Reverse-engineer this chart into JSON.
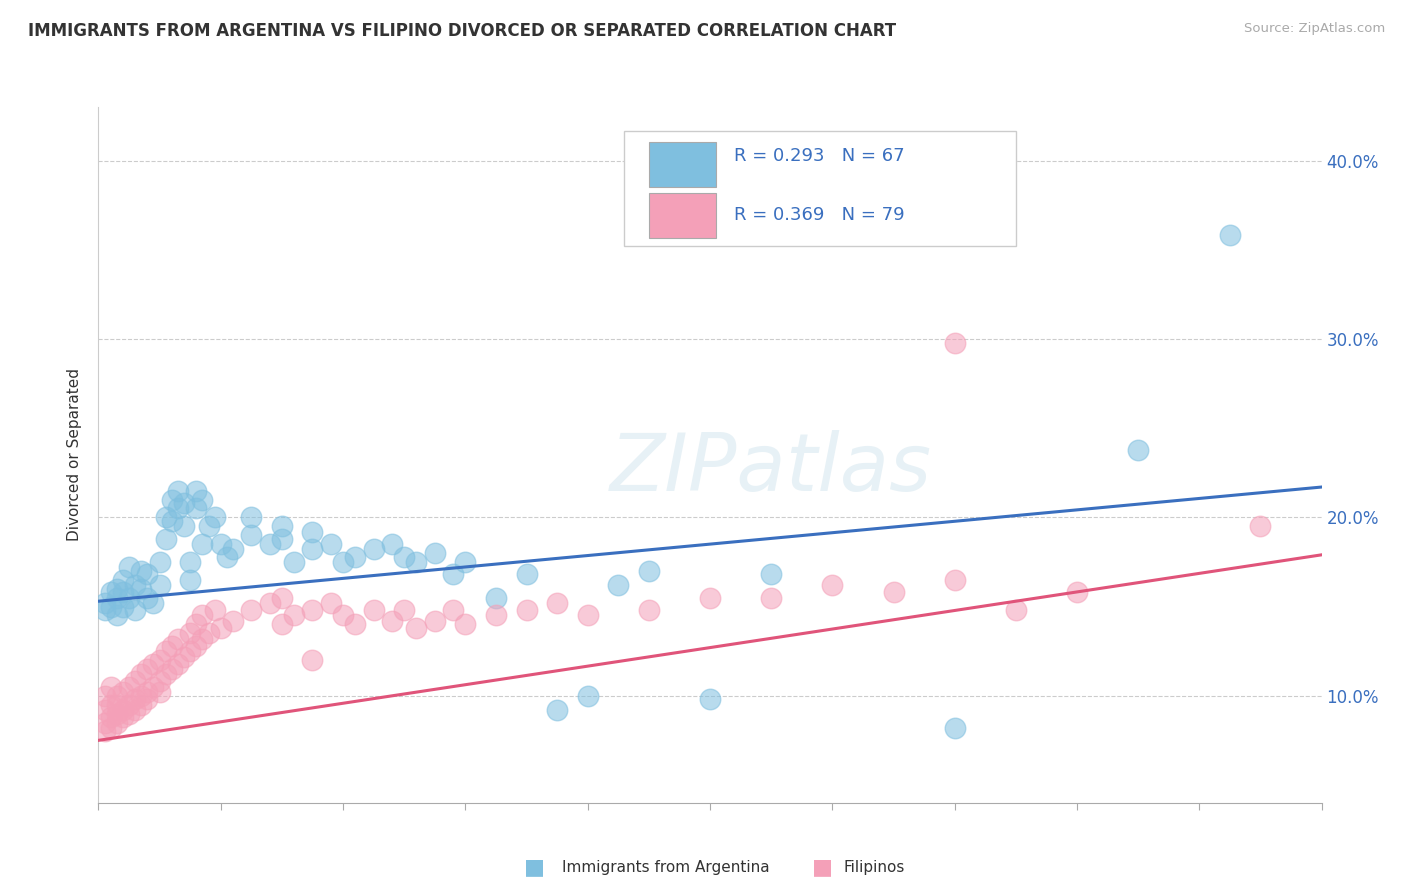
{
  "title": "IMMIGRANTS FROM ARGENTINA VS FILIPINO DIVORCED OR SEPARATED CORRELATION CHART",
  "source": "Source: ZipAtlas.com",
  "ylabel": "Divorced or Separated",
  "yticks": [
    0.1,
    0.2,
    0.3,
    0.4
  ],
  "ytick_labels": [
    "10.0%",
    "20.0%",
    "30.0%",
    "40.0%"
  ],
  "xrange": [
    0.0,
    0.2
  ],
  "yrange": [
    0.04,
    0.43
  ],
  "blue_color": "#7fbfdf",
  "pink_color": "#f4a0b8",
  "blue_line_color": "#3a6fbf",
  "pink_line_color": "#e0547a",
  "blue_intercept": 0.153,
  "blue_slope": 0.32,
  "pink_intercept": 0.075,
  "pink_slope": 0.52,
  "blue_scatter": [
    [
      0.001,
      0.152
    ],
    [
      0.001,
      0.148
    ],
    [
      0.002,
      0.15
    ],
    [
      0.002,
      0.158
    ],
    [
      0.003,
      0.145
    ],
    [
      0.003,
      0.16
    ],
    [
      0.003,
      0.155
    ],
    [
      0.004,
      0.15
    ],
    [
      0.004,
      0.165
    ],
    [
      0.004,
      0.158
    ],
    [
      0.005,
      0.155
    ],
    [
      0.005,
      0.172
    ],
    [
      0.006,
      0.162
    ],
    [
      0.006,
      0.148
    ],
    [
      0.007,
      0.16
    ],
    [
      0.007,
      0.17
    ],
    [
      0.008,
      0.168
    ],
    [
      0.008,
      0.155
    ],
    [
      0.009,
      0.152
    ],
    [
      0.01,
      0.175
    ],
    [
      0.01,
      0.162
    ],
    [
      0.011,
      0.2
    ],
    [
      0.011,
      0.188
    ],
    [
      0.012,
      0.21
    ],
    [
      0.012,
      0.198
    ],
    [
      0.013,
      0.205
    ],
    [
      0.013,
      0.215
    ],
    [
      0.014,
      0.208
    ],
    [
      0.014,
      0.195
    ],
    [
      0.015,
      0.165
    ],
    [
      0.015,
      0.175
    ],
    [
      0.016,
      0.215
    ],
    [
      0.016,
      0.205
    ],
    [
      0.017,
      0.21
    ],
    [
      0.017,
      0.185
    ],
    [
      0.018,
      0.195
    ],
    [
      0.019,
      0.2
    ],
    [
      0.02,
      0.185
    ],
    [
      0.021,
      0.178
    ],
    [
      0.022,
      0.182
    ],
    [
      0.025,
      0.2
    ],
    [
      0.025,
      0.19
    ],
    [
      0.028,
      0.185
    ],
    [
      0.03,
      0.188
    ],
    [
      0.03,
      0.195
    ],
    [
      0.032,
      0.175
    ],
    [
      0.035,
      0.192
    ],
    [
      0.035,
      0.182
    ],
    [
      0.038,
      0.185
    ],
    [
      0.04,
      0.175
    ],
    [
      0.042,
      0.178
    ],
    [
      0.045,
      0.182
    ],
    [
      0.048,
      0.185
    ],
    [
      0.05,
      0.178
    ],
    [
      0.052,
      0.175
    ],
    [
      0.055,
      0.18
    ],
    [
      0.058,
      0.168
    ],
    [
      0.06,
      0.175
    ],
    [
      0.065,
      0.155
    ],
    [
      0.07,
      0.168
    ],
    [
      0.075,
      0.092
    ],
    [
      0.08,
      0.1
    ],
    [
      0.085,
      0.162
    ],
    [
      0.09,
      0.17
    ],
    [
      0.1,
      0.098
    ],
    [
      0.11,
      0.168
    ],
    [
      0.14,
      0.082
    ],
    [
      0.17,
      0.238
    ],
    [
      0.185,
      0.358
    ]
  ],
  "pink_scatter": [
    [
      0.001,
      0.092
    ],
    [
      0.001,
      0.085
    ],
    [
      0.001,
      0.1
    ],
    [
      0.001,
      0.08
    ],
    [
      0.002,
      0.088
    ],
    [
      0.002,
      0.095
    ],
    [
      0.002,
      0.082
    ],
    [
      0.002,
      0.105
    ],
    [
      0.003,
      0.09
    ],
    [
      0.003,
      0.1
    ],
    [
      0.003,
      0.085
    ],
    [
      0.003,
      0.095
    ],
    [
      0.004,
      0.092
    ],
    [
      0.004,
      0.102
    ],
    [
      0.004,
      0.088
    ],
    [
      0.005,
      0.095
    ],
    [
      0.005,
      0.105
    ],
    [
      0.005,
      0.09
    ],
    [
      0.006,
      0.098
    ],
    [
      0.006,
      0.108
    ],
    [
      0.006,
      0.092
    ],
    [
      0.007,
      0.1
    ],
    [
      0.007,
      0.112
    ],
    [
      0.007,
      0.095
    ],
    [
      0.008,
      0.102
    ],
    [
      0.008,
      0.115
    ],
    [
      0.008,
      0.098
    ],
    [
      0.009,
      0.105
    ],
    [
      0.009,
      0.118
    ],
    [
      0.01,
      0.108
    ],
    [
      0.01,
      0.12
    ],
    [
      0.01,
      0.102
    ],
    [
      0.011,
      0.112
    ],
    [
      0.011,
      0.125
    ],
    [
      0.012,
      0.115
    ],
    [
      0.012,
      0.128
    ],
    [
      0.013,
      0.118
    ],
    [
      0.013,
      0.132
    ],
    [
      0.014,
      0.122
    ],
    [
      0.015,
      0.135
    ],
    [
      0.015,
      0.125
    ],
    [
      0.016,
      0.128
    ],
    [
      0.016,
      0.14
    ],
    [
      0.017,
      0.132
    ],
    [
      0.017,
      0.145
    ],
    [
      0.018,
      0.135
    ],
    [
      0.019,
      0.148
    ],
    [
      0.02,
      0.138
    ],
    [
      0.022,
      0.142
    ],
    [
      0.025,
      0.148
    ],
    [
      0.028,
      0.152
    ],
    [
      0.03,
      0.14
    ],
    [
      0.03,
      0.155
    ],
    [
      0.032,
      0.145
    ],
    [
      0.035,
      0.148
    ],
    [
      0.035,
      0.12
    ],
    [
      0.038,
      0.152
    ],
    [
      0.04,
      0.145
    ],
    [
      0.042,
      0.14
    ],
    [
      0.045,
      0.148
    ],
    [
      0.048,
      0.142
    ],
    [
      0.05,
      0.148
    ],
    [
      0.052,
      0.138
    ],
    [
      0.055,
      0.142
    ],
    [
      0.058,
      0.148
    ],
    [
      0.06,
      0.14
    ],
    [
      0.065,
      0.145
    ],
    [
      0.07,
      0.148
    ],
    [
      0.075,
      0.152
    ],
    [
      0.08,
      0.145
    ],
    [
      0.09,
      0.148
    ],
    [
      0.1,
      0.155
    ],
    [
      0.11,
      0.155
    ],
    [
      0.12,
      0.162
    ],
    [
      0.13,
      0.158
    ],
    [
      0.14,
      0.165
    ],
    [
      0.15,
      0.148
    ],
    [
      0.16,
      0.158
    ],
    [
      0.14,
      0.298
    ],
    [
      0.19,
      0.195
    ]
  ]
}
